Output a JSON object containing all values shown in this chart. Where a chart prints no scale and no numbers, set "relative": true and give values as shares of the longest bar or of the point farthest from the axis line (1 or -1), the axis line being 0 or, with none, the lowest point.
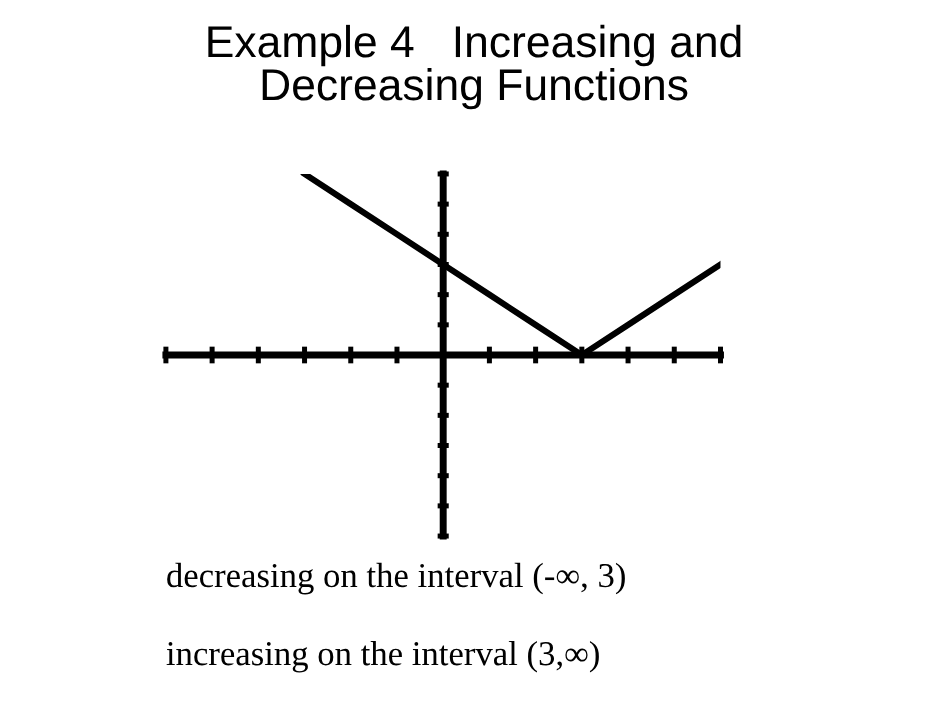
{
  "chart_data": {
    "type": "line",
    "title": "Example 4   Increasing and\nDecreasing Functions",
    "categories": [
      null,
      null,
      null,
      null,
      null,
      null,
      null,
      null,
      null,
      null,
      null,
      null,
      null
    ],
    "series": [
      {
        "color": "#000000",
        "values": [
          null,
          null,
          null,
          1,
          0.8333,
          0.6667,
          0.5,
          0.3333,
          0.1667,
          0,
          0.1667,
          0.3333,
          0.5
        ]
      }
    ],
    "relative": true,
    "annotations": [
      "decreasing on the interval (-∞, 3)",
      "increasing on the interval (3,∞)"
    ]
  }
}
